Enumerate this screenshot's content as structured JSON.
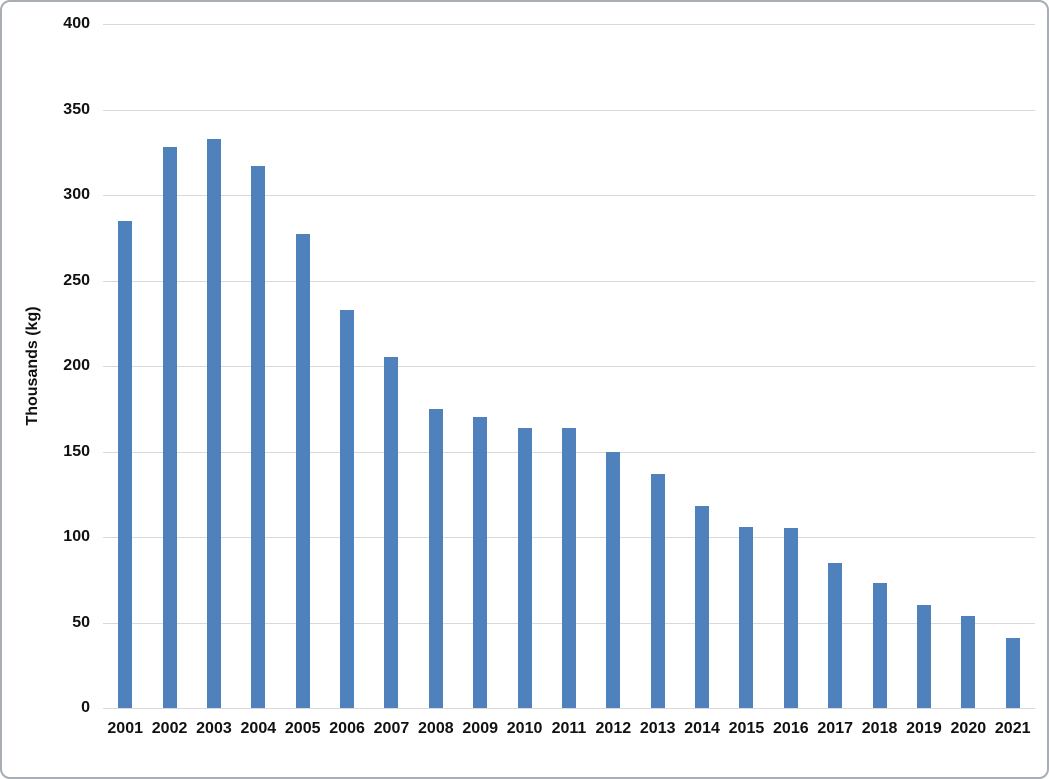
{
  "chart_data": {
    "type": "bar",
    "title": "",
    "xlabel": "",
    "ylabel": "Thousands (kg)",
    "categories": [
      "2001",
      "2002",
      "2003",
      "2004",
      "2005",
      "2006",
      "2007",
      "2008",
      "2009",
      "2010",
      "2011",
      "2012",
      "2013",
      "2014",
      "2015",
      "2016",
      "2017",
      "2018",
      "2019",
      "2020",
      "2021"
    ],
    "values": [
      285,
      328,
      333,
      317,
      277,
      233,
      205,
      175,
      170,
      164,
      164,
      150,
      137,
      118,
      106,
      105,
      85,
      73,
      60,
      54,
      41
    ],
    "ylim": [
      0,
      400
    ],
    "yticks": [
      0,
      50,
      100,
      150,
      200,
      250,
      300,
      350,
      400
    ],
    "grid": true,
    "legend_position": "none",
    "bar_color": "#4f81bd",
    "gridline_color": "#d9d9d9",
    "axis_label_color": "#111111",
    "frame_border_color": "#a8aeb4"
  }
}
